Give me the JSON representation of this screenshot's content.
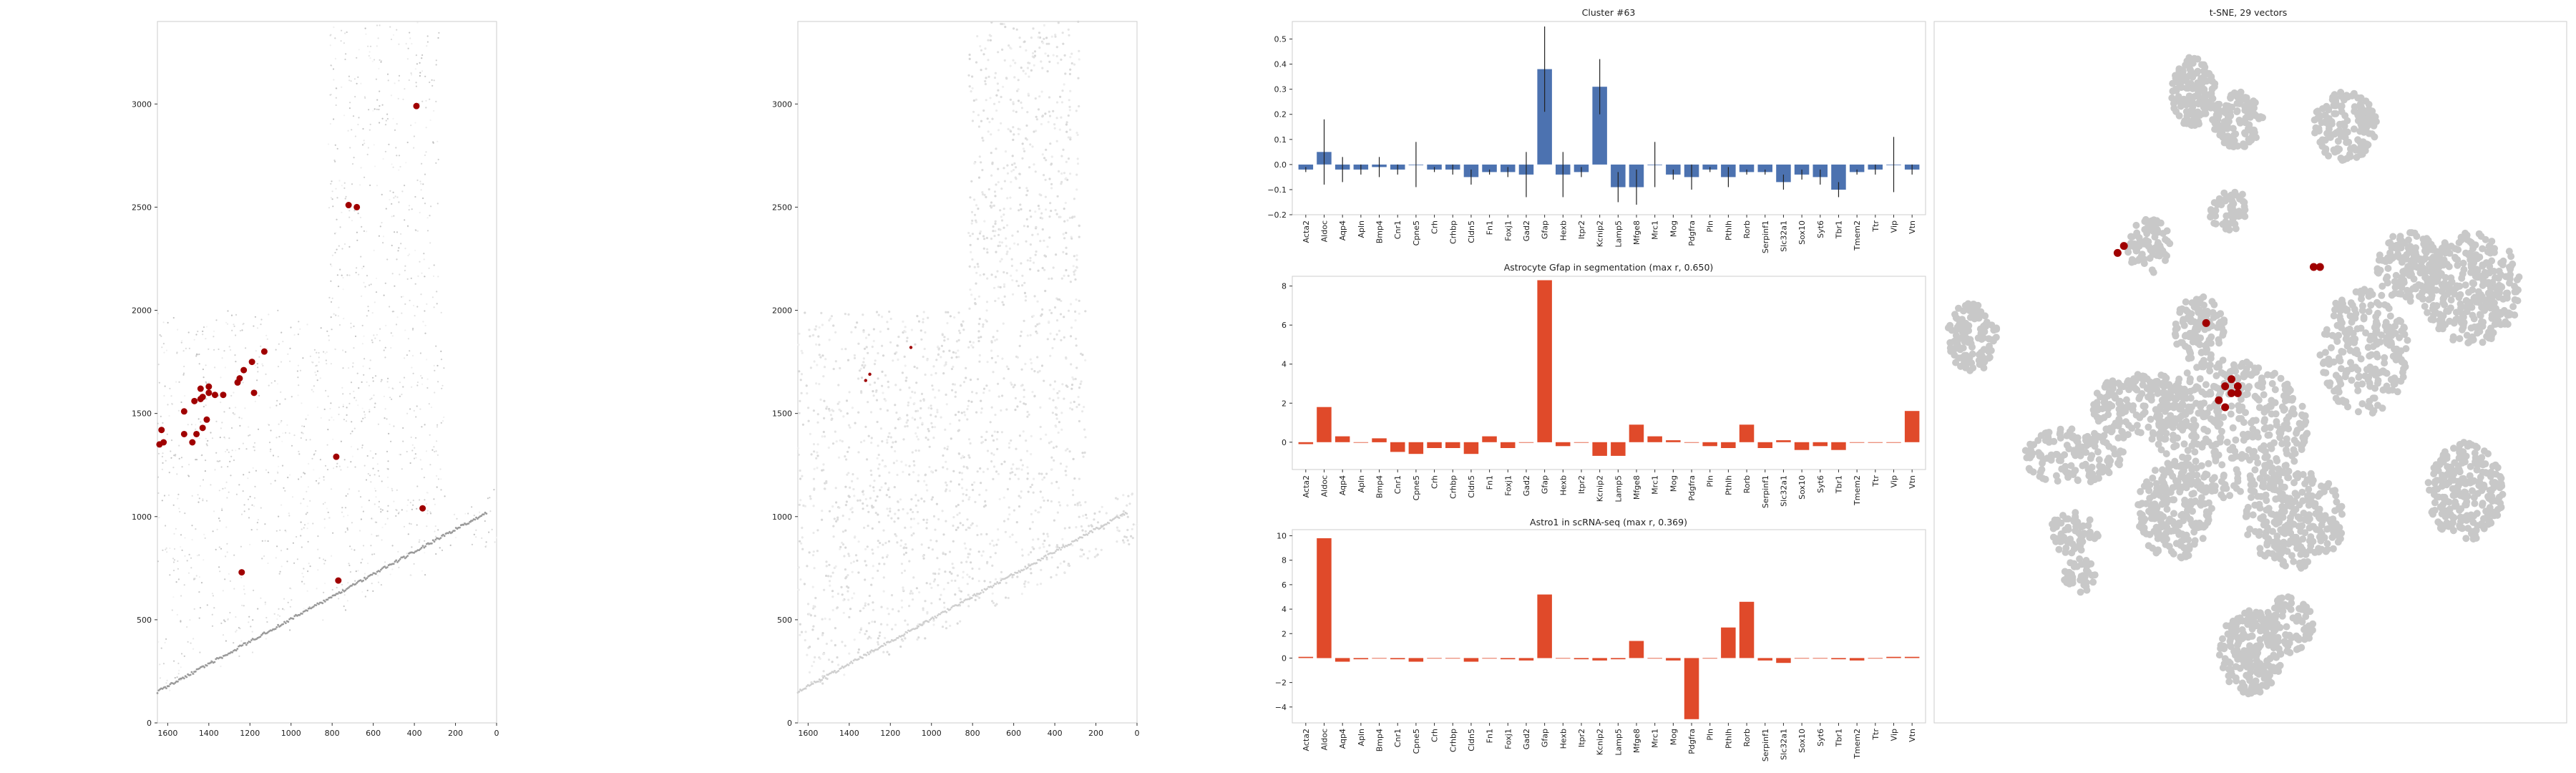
{
  "genes": [
    "Acta2",
    "Aldoc",
    "Aqp4",
    "Apln",
    "Bmp4",
    "Cnr1",
    "Cpne5",
    "Crh",
    "Crhbp",
    "Cldn5",
    "Fn1",
    "Foxj1",
    "Gad2",
    "Gfap",
    "Hexb",
    "Itpr2",
    "Kcnip2",
    "Lamp5",
    "Mfge8",
    "Mrc1",
    "Mog",
    "Pdgfra",
    "Pln",
    "Pthlh",
    "Rorb",
    "Serpinf1",
    "Slc32a1",
    "Sox10",
    "Syt6",
    "Tbr1",
    "Tmem2",
    "Ttr",
    "Vip",
    "Vtn"
  ],
  "colors": {
    "blue_bar": "#4c72b0",
    "red_bar": "#e04a2a",
    "highlight": "#a00000",
    "grey_point": "#c8c8c8",
    "frame": "#cccccc"
  },
  "chart_data": [
    {
      "id": "spatial-left",
      "type": "scatter",
      "title": "",
      "xlim": [
        1650,
        0
      ],
      "ylim": [
        3400,
        0
      ],
      "x_ticks": [
        "1600",
        "1400",
        "1200",
        "1000",
        "800",
        "600",
        "400",
        "200",
        "0"
      ],
      "y_ticks": [
        "0",
        "500",
        "1000",
        "1500",
        "2000",
        "2500",
        "3000"
      ],
      "highlight_points": [
        [
          1240,
          730
        ],
        [
          770,
          690
        ],
        [
          360,
          1040
        ],
        [
          780,
          1290
        ],
        [
          1640,
          1350
        ],
        [
          1630,
          1420
        ],
        [
          1620,
          1360
        ],
        [
          1520,
          1400
        ],
        [
          1480,
          1360
        ],
        [
          1460,
          1400
        ],
        [
          1430,
          1430
        ],
        [
          1410,
          1470
        ],
        [
          1520,
          1510
        ],
        [
          1470,
          1560
        ],
        [
          1440,
          1570
        ],
        [
          1430,
          1580
        ],
        [
          1400,
          1600
        ],
        [
          1370,
          1590
        ],
        [
          1330,
          1590
        ],
        [
          1440,
          1620
        ],
        [
          1400,
          1630
        ],
        [
          1260,
          1650
        ],
        [
          1250,
          1670
        ],
        [
          1180,
          1600
        ],
        [
          1230,
          1710
        ],
        [
          1190,
          1750
        ],
        [
          1130,
          1800
        ],
        [
          720,
          2510
        ],
        [
          680,
          2500
        ],
        [
          390,
          2990
        ]
      ]
    },
    {
      "id": "spatial-right",
      "type": "scatter",
      "title": "",
      "xlim": [
        1650,
        0
      ],
      "ylim": [
        3400,
        0
      ],
      "x_ticks": [
        "1600",
        "1400",
        "1200",
        "1000",
        "800",
        "600",
        "400",
        "200",
        "0"
      ],
      "y_ticks": [
        "0",
        "500",
        "1000",
        "1500",
        "2000",
        "2500",
        "3000"
      ],
      "highlight_points": [
        [
          1320,
          1660
        ],
        [
          1300,
          1690
        ],
        [
          1100,
          1820
        ]
      ]
    },
    {
      "id": "cluster-bars",
      "type": "bar",
      "title": "Cluster #63",
      "ylim": [
        -0.2,
        0.57
      ],
      "y_ticks": [
        "−0.2",
        "−0.1",
        "0.0",
        "0.1",
        "0.2",
        "0.3",
        "0.4",
        "0.5"
      ],
      "values": [
        -0.02,
        0.05,
        -0.02,
        -0.02,
        -0.01,
        -0.02,
        0.0,
        -0.02,
        -0.02,
        -0.05,
        -0.03,
        -0.03,
        -0.04,
        0.38,
        -0.04,
        -0.03,
        0.31,
        -0.09,
        -0.09,
        0.0,
        -0.04,
        -0.05,
        -0.02,
        -0.05,
        -0.03,
        -0.03,
        -0.07,
        -0.04,
        -0.05,
        -0.1,
        -0.03,
        -0.02,
        0.0,
        -0.02
      ],
      "errors": [
        0.01,
        0.13,
        0.05,
        0.02,
        0.04,
        0.02,
        0.09,
        0.01,
        0.02,
        0.03,
        0.01,
        0.02,
        0.09,
        0.17,
        0.09,
        0.02,
        0.11,
        0.06,
        0.07,
        0.09,
        0.02,
        0.05,
        0.01,
        0.04,
        0.01,
        0.01,
        0.03,
        0.02,
        0.03,
        0.03,
        0.01,
        0.02,
        0.11,
        0.02
      ]
    },
    {
      "id": "seg-bars",
      "type": "bar",
      "title": "Astrocyte Gfap in segmentation (max r, 0.650)",
      "ylim": [
        -1.4,
        8.5
      ],
      "y_ticks": [
        "0",
        "2",
        "4",
        "6",
        "8"
      ],
      "values": [
        -0.1,
        1.8,
        0.3,
        0.0,
        0.2,
        -0.5,
        -0.6,
        -0.3,
        -0.3,
        -0.6,
        0.3,
        -0.3,
        0.0,
        8.3,
        -0.2,
        0.0,
        -0.7,
        -0.7,
        0.9,
        0.3,
        0.1,
        0.0,
        -0.2,
        -0.3,
        0.9,
        -0.3,
        0.1,
        -0.4,
        -0.2,
        -0.4,
        0.0,
        0.0,
        0.0,
        1.6
      ]
    },
    {
      "id": "rna-bars",
      "type": "bar",
      "title": "Astro1 in scRNA-seq (max r, 0.369)",
      "ylim": [
        -5.3,
        10.5
      ],
      "y_ticks": [
        "−4",
        "−2",
        "0",
        "2",
        "4",
        "6",
        "8",
        "10"
      ],
      "values": [
        0.1,
        9.8,
        -0.3,
        -0.1,
        0.0,
        -0.1,
        -0.3,
        0.0,
        0.0,
        -0.3,
        0.0,
        -0.1,
        -0.2,
        5.2,
        0.0,
        -0.1,
        -0.2,
        -0.1,
        1.4,
        0.0,
        -0.2,
        -5.0,
        0.0,
        2.5,
        4.6,
        -0.2,
        -0.4,
        0.0,
        0.0,
        -0.1,
        -0.2,
        0.0,
        0.1,
        0.1
      ]
    },
    {
      "id": "tsne",
      "type": "scatter",
      "title": "t-SNE, 29 vectors",
      "xlim": [
        0,
        100
      ],
      "ylim": [
        100,
        0
      ],
      "grey_clusters": [
        {
          "cx": 41,
          "cy": 10,
          "rx": 3.5,
          "ry": 5,
          "n": 140
        },
        {
          "cx": 48,
          "cy": 14,
          "rx": 4,
          "ry": 4,
          "n": 110
        },
        {
          "cx": 65,
          "cy": 15,
          "rx": 5,
          "ry": 5,
          "n": 150
        },
        {
          "cx": 47,
          "cy": 27,
          "rx": 3.5,
          "ry": 3,
          "n": 60
        },
        {
          "cx": 34,
          "cy": 32,
          "rx": 3.5,
          "ry": 4,
          "n": 80
        },
        {
          "cx": 75,
          "cy": 35,
          "rx": 5,
          "ry": 5,
          "n": 150
        },
        {
          "cx": 85,
          "cy": 38,
          "rx": 8,
          "ry": 8,
          "n": 320
        },
        {
          "cx": 68,
          "cy": 47,
          "rx": 7,
          "ry": 9,
          "n": 240
        },
        {
          "cx": 6,
          "cy": 45,
          "rx": 4,
          "ry": 5,
          "n": 120
        },
        {
          "cx": 42,
          "cy": 44,
          "rx": 4,
          "ry": 5,
          "n": 110
        },
        {
          "cx": 33,
          "cy": 55,
          "rx": 8,
          "ry": 5,
          "n": 200
        },
        {
          "cx": 47,
          "cy": 58,
          "rx": 12,
          "ry": 10,
          "n": 420
        },
        {
          "cx": 22,
          "cy": 62,
          "rx": 8,
          "ry": 4,
          "n": 140
        },
        {
          "cx": 38,
          "cy": 70,
          "rx": 6,
          "ry": 7,
          "n": 220
        },
        {
          "cx": 57,
          "cy": 71,
          "rx": 8,
          "ry": 7,
          "n": 260
        },
        {
          "cx": 84,
          "cy": 67,
          "rx": 6,
          "ry": 7,
          "n": 260
        },
        {
          "cx": 22,
          "cy": 73,
          "rx": 4,
          "ry": 3,
          "n": 60
        },
        {
          "cx": 23,
          "cy": 79,
          "rx": 2.5,
          "ry": 2.5,
          "n": 40
        },
        {
          "cx": 50,
          "cy": 90,
          "rx": 5,
          "ry": 6,
          "n": 200
        },
        {
          "cx": 56,
          "cy": 86,
          "rx": 4,
          "ry": 4,
          "n": 90
        }
      ],
      "highlight_points": [
        [
          29,
          33
        ],
        [
          30,
          32
        ],
        [
          60,
          35
        ],
        [
          61,
          35
        ],
        [
          43,
          43
        ],
        [
          46,
          52
        ],
        [
          47,
          51
        ],
        [
          48,
          52
        ],
        [
          47,
          53
        ],
        [
          45,
          54
        ],
        [
          46,
          55
        ],
        [
          48,
          53
        ]
      ]
    }
  ]
}
